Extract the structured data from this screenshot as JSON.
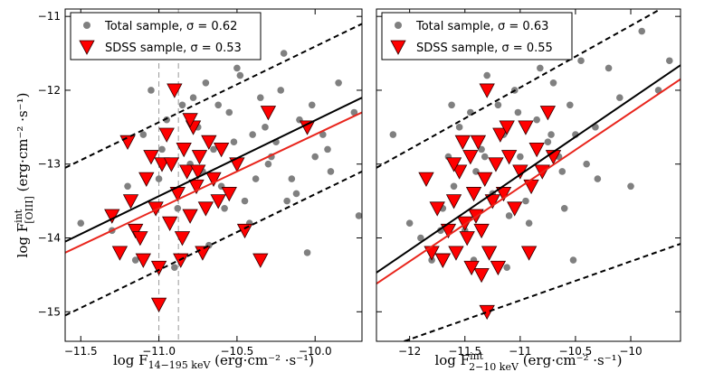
{
  "chart_data": [
    {
      "type": "scatter",
      "xlim": [
        -11.6,
        -9.7
      ],
      "ylim": [
        -15.4,
        -10.9
      ],
      "xticks": [
        {
          "value": -11.5,
          "label": "−11.5"
        },
        {
          "value": -11.0,
          "label": "−11.0"
        },
        {
          "value": -10.5,
          "label": "−10.5"
        },
        {
          "value": -10.0,
          "label": "−10.0"
        }
      ],
      "yticks": [
        {
          "value": -11,
          "label": "−11"
        },
        {
          "value": -12,
          "label": "−12"
        },
        {
          "value": -13,
          "label": "−13"
        },
        {
          "value": -14,
          "label": "−14"
        },
        {
          "value": -15,
          "label": "−15"
        }
      ],
      "xlabel": {
        "text": "log F",
        "sub": "14−195 keV",
        "unit": " (erg·cm⁻² ·s⁻¹)"
      },
      "ylabel": {
        "text": "log F",
        "sup": "int",
        "sub": "[OIII]",
        "unit": " (erg·cm⁻² ·s⁻¹)"
      },
      "vlines": [
        -11.0,
        -10.875
      ],
      "lines": [
        {
          "color": "#000000",
          "dash": false,
          "x": [
            -11.6,
            -9.7
          ],
          "y": [
            -14.05,
            -12.1
          ]
        },
        {
          "color": "#e8251c",
          "dash": false,
          "x": [
            -11.6,
            -9.7
          ],
          "y": [
            -14.2,
            -12.3
          ]
        },
        {
          "color": "#000000",
          "dash": true,
          "x": [
            -11.6,
            -9.7
          ],
          "y": [
            -13.05,
            -11.1
          ]
        },
        {
          "color": "#000000",
          "dash": true,
          "x": [
            -11.6,
            -9.7
          ],
          "y": [
            -15.05,
            -13.1
          ]
        }
      ],
      "series": [
        {
          "name": "Total sample, σ = 0.62",
          "color": "#808080",
          "marker": "circle",
          "x": [
            -11.5,
            -11.3,
            -11.2,
            -11.1,
            -11.05,
            -11.0,
            -10.95,
            -10.9,
            -10.85,
            -10.8,
            -10.75,
            -10.7,
            -10.65,
            -10.6,
            -10.55,
            -10.5,
            -10.45,
            -10.4,
            -10.35,
            -10.3,
            -10.25,
            -10.2,
            -10.15,
            -10.1,
            -10.05,
            -10.0,
            -9.95,
            -9.9,
            -9.85,
            -9.75,
            -11.15,
            -10.98,
            -10.88,
            -10.78,
            -10.68,
            -10.58,
            -10.48,
            -10.38,
            -10.28,
            -10.18,
            -10.72,
            -10.62,
            -10.52,
            -10.42,
            -10.32,
            -10.22,
            -10.12,
            -10.02,
            -9.92,
            -9.72
          ],
          "values": [
            -13.8,
            -13.9,
            -13.3,
            -12.6,
            -12.0,
            -13.2,
            -12.4,
            -14.4,
            -12.2,
            -13.0,
            -12.5,
            -11.9,
            -12.8,
            -13.3,
            -12.3,
            -11.7,
            -13.5,
            -12.6,
            -12.1,
            -13.0,
            -12.7,
            -11.5,
            -13.2,
            -12.4,
            -14.2,
            -12.9,
            -12.6,
            -13.1,
            -11.9,
            -12.3,
            -14.3,
            -12.8,
            -13.6,
            -12.1,
            -14.1,
            -13.6,
            -11.8,
            -13.2,
            -12.9,
            -13.5,
            -13.1,
            -12.2,
            -12.7,
            -13.8,
            -12.5,
            -12.0,
            -13.4,
            -12.2,
            -12.8,
            -13.7
          ]
        },
        {
          "name": "SDSS sample, σ = 0.53",
          "color": "#ff0000",
          "marker": "triangle",
          "x": [
            -11.3,
            -11.25,
            -11.2,
            -11.15,
            -11.1,
            -11.08,
            -11.05,
            -11.02,
            -11.0,
            -10.98,
            -10.95,
            -10.93,
            -10.9,
            -10.88,
            -10.86,
            -10.84,
            -10.82,
            -10.8,
            -10.78,
            -10.76,
            -10.74,
            -10.72,
            -10.7,
            -10.68,
            -10.65,
            -10.6,
            -10.55,
            -10.5,
            -10.45,
            -10.3,
            -10.05,
            -11.18,
            -11.12,
            -11.0,
            -10.92,
            -10.85,
            -10.8,
            -10.75,
            -10.62,
            -10.35
          ],
          "values": [
            -13.7,
            -14.2,
            -12.7,
            -13.9,
            -14.3,
            -13.2,
            -12.9,
            -13.6,
            -14.4,
            -13.0,
            -12.6,
            -13.8,
            -12.0,
            -13.4,
            -14.3,
            -12.8,
            -13.1,
            -13.7,
            -12.5,
            -13.3,
            -12.9,
            -14.2,
            -13.6,
            -12.7,
            -13.2,
            -12.8,
            -13.4,
            -13.0,
            -13.9,
            -12.3,
            -12.5,
            -13.5,
            -14.0,
            -14.9,
            -13.0,
            -14.0,
            -12.4,
            -13.1,
            -13.5,
            -14.3
          ]
        }
      ]
    },
    {
      "type": "scatter",
      "xlim": [
        -12.3,
        -9.55
      ],
      "ylim": [
        -15.4,
        -10.9
      ],
      "xticks": [
        {
          "value": -12,
          "label": "−12"
        },
        {
          "value": -11.5,
          "label": "−11.5"
        },
        {
          "value": -11,
          "label": "−11"
        },
        {
          "value": -10.5,
          "label": "−10.5"
        },
        {
          "value": -10,
          "label": "−10"
        }
      ],
      "yticks": [
        -11,
        -12,
        -13,
        -14,
        -15
      ],
      "show_ytick_labels": false,
      "xlabel": {
        "text": "log F",
        "sup": "int",
        "sub": "2−10 keV",
        "unit": " (erg·cm⁻² ·s⁻¹)"
      },
      "vlines": [],
      "lines": [
        {
          "color": "#000000",
          "dash": false,
          "x": [
            -12.3,
            -9.55
          ],
          "y": [
            -14.47,
            -11.66
          ]
        },
        {
          "color": "#e8251c",
          "dash": false,
          "x": [
            -12.3,
            -9.55
          ],
          "y": [
            -14.62,
            -11.85
          ]
        },
        {
          "color": "#000000",
          "dash": true,
          "x": [
            -12.3,
            -9.73
          ],
          "y": [
            -13.05,
            -10.9
          ]
        },
        {
          "color": "#000000",
          "dash": true,
          "x": [
            -12.05,
            -9.55
          ],
          "y": [
            -15.4,
            -14.08
          ]
        }
      ],
      "series": [
        {
          "name": "Total sample, σ = 0.63",
          "color": "#808080",
          "marker": "circle",
          "x": [
            -12.15,
            -12.0,
            -11.9,
            -11.8,
            -11.7,
            -11.65,
            -11.6,
            -11.55,
            -11.5,
            -11.45,
            -11.4,
            -11.35,
            -11.3,
            -11.25,
            -11.2,
            -11.15,
            -11.1,
            -11.05,
            -11.0,
            -10.95,
            -10.9,
            -10.85,
            -10.8,
            -10.75,
            -10.7,
            -10.65,
            -10.6,
            -10.55,
            -10.5,
            -10.45,
            -10.4,
            -10.3,
            -10.2,
            -10.1,
            -10.0,
            -9.9,
            -9.75,
            -9.65,
            -11.72,
            -11.42,
            -11.12,
            -10.92,
            -10.72,
            -10.52,
            -10.32,
            -11.62,
            -11.32,
            -11.02,
            -10.82,
            -10.62
          ],
          "values": [
            -12.6,
            -13.8,
            -14.0,
            -14.3,
            -13.6,
            -12.9,
            -13.3,
            -12.5,
            -13.9,
            -12.3,
            -13.1,
            -12.8,
            -11.8,
            -13.4,
            -12.2,
            -12.6,
            -13.7,
            -12.0,
            -12.9,
            -13.5,
            -11.5,
            -12.4,
            -13.1,
            -12.7,
            -11.9,
            -12.9,
            -13.6,
            -12.2,
            -12.6,
            -11.6,
            -13.0,
            -13.2,
            -11.7,
            -12.1,
            -13.3,
            -11.2,
            -12.0,
            -11.6,
            -13.9,
            -14.3,
            -14.4,
            -13.8,
            -12.6,
            -14.3,
            -12.5,
            -12.2,
            -12.9,
            -12.3,
            -11.7,
            -13.1
          ]
        },
        {
          "name": "SDSS sample, σ = 0.55",
          "color": "#ff0000",
          "marker": "triangle",
          "x": [
            -11.85,
            -11.8,
            -11.75,
            -11.7,
            -11.65,
            -11.6,
            -11.58,
            -11.55,
            -11.5,
            -11.48,
            -11.45,
            -11.42,
            -11.4,
            -11.38,
            -11.35,
            -11.32,
            -11.3,
            -11.28,
            -11.25,
            -11.22,
            -11.2,
            -11.18,
            -11.15,
            -11.1,
            -11.05,
            -11.0,
            -10.95,
            -10.9,
            -10.85,
            -10.8,
            -10.75,
            -10.7,
            -11.3,
            -11.35,
            -11.6,
            -11.52,
            -11.44,
            -11.12,
            -10.92,
            -11.7
          ],
          "values": [
            -13.2,
            -14.2,
            -13.6,
            -14.3,
            -13.9,
            -13.5,
            -14.2,
            -13.1,
            -13.8,
            -14.0,
            -12.9,
            -13.4,
            -13.7,
            -12.7,
            -13.9,
            -13.2,
            -12.0,
            -14.2,
            -13.5,
            -13.0,
            -14.4,
            -12.6,
            -13.4,
            -12.9,
            -13.6,
            -13.1,
            -12.5,
            -13.3,
            -12.8,
            -13.1,
            -12.3,
            -12.9,
            -15.0,
            -14.5,
            -13.0,
            -12.7,
            -14.4,
            -12.5,
            -14.2,
            -14.3
          ]
        }
      ]
    }
  ]
}
